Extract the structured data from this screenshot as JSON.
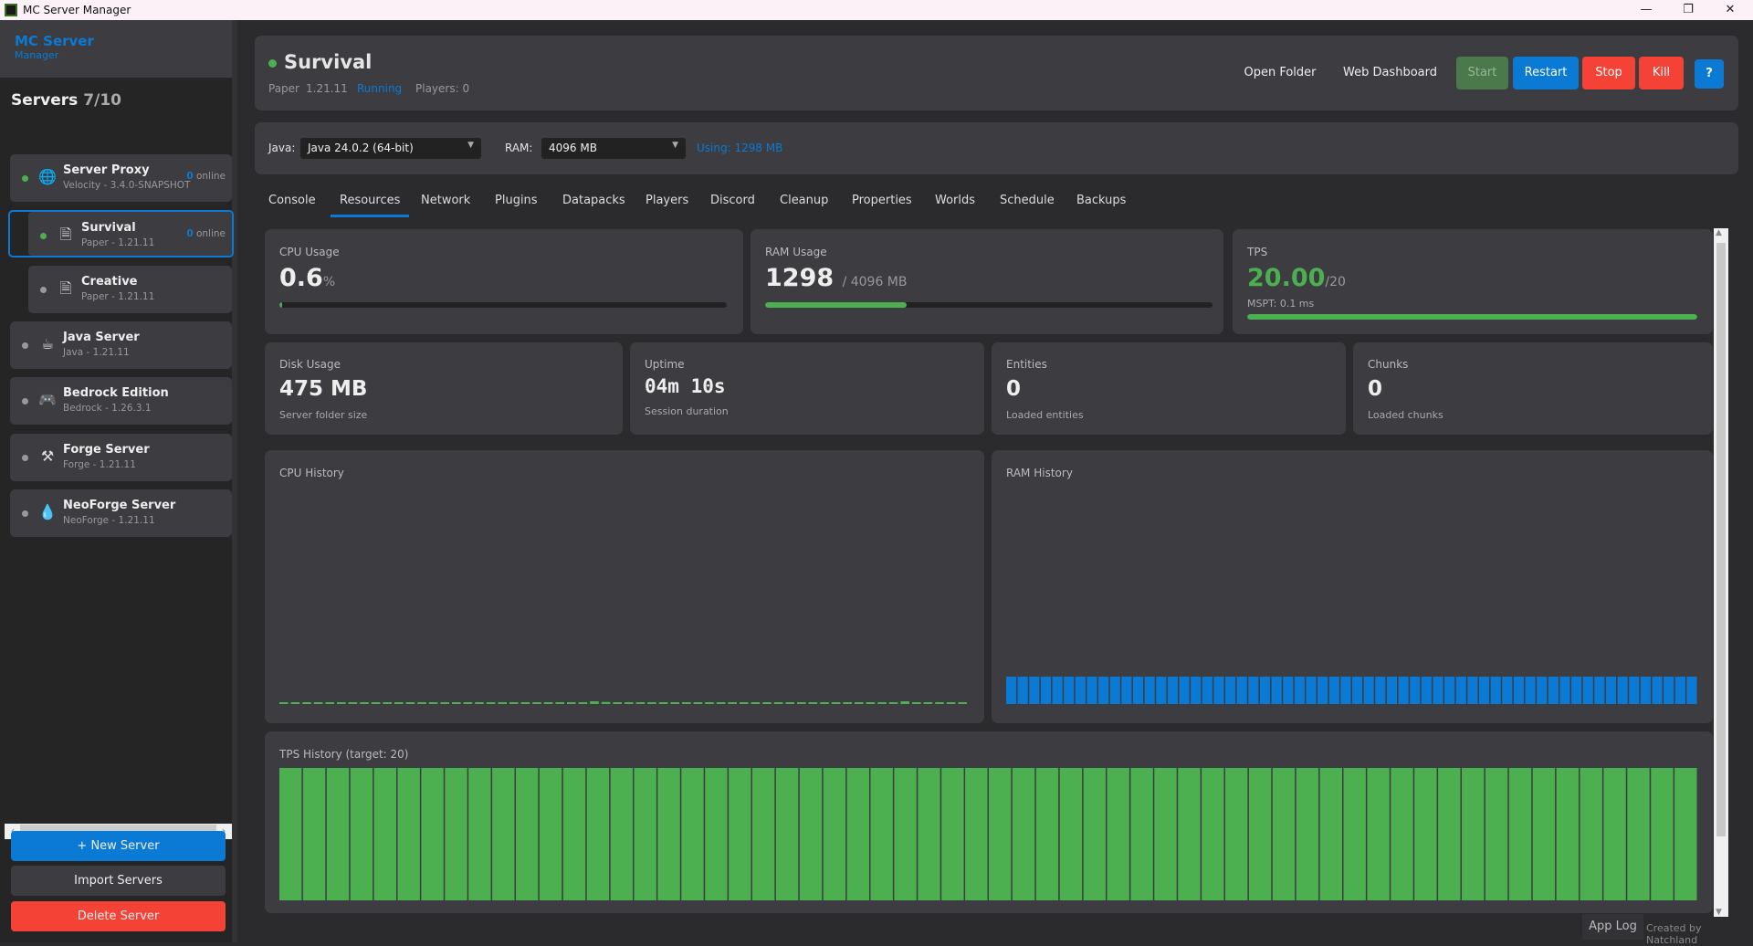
{
  "window": {
    "title": "MC Server Manager",
    "minimize": "—",
    "maximize": "❐",
    "close": "✕"
  },
  "sidebar": {
    "brand_title": "MC Server",
    "brand_subtitle": "Manager",
    "heading": "Servers",
    "count": "7/10",
    "servers": [
      {
        "name": "Server Proxy",
        "sub": "Velocity - 3.4.0-SNAPSHOT",
        "online": "0",
        "online_label": "online",
        "running": true,
        "icon": "globe-icon",
        "glyph": "🌐"
      },
      {
        "name": "Survival",
        "sub": "Paper - 1.21.11",
        "online": "0",
        "online_label": "online",
        "running": true,
        "icon": "document-icon",
        "glyph": "🗎"
      },
      {
        "name": "Creative",
        "sub": "Paper - 1.21.11",
        "running": false,
        "icon": "document-icon",
        "glyph": "🗎"
      },
      {
        "name": "Java Server",
        "sub": "Java - 1.21.11",
        "running": false,
        "icon": "coffee-cup-icon",
        "glyph": "☕"
      },
      {
        "name": "Bedrock Edition",
        "sub": "Bedrock - 1.26.3.1",
        "running": false,
        "icon": "gamepad-icon",
        "glyph": "🎮"
      },
      {
        "name": "Forge Server",
        "sub": "Forge - 1.21.11",
        "running": false,
        "icon": "hammers-icon",
        "glyph": "⚒"
      },
      {
        "name": "NeoForge Server",
        "sub": "NeoForge - 1.21.11",
        "running": false,
        "icon": "flame-icon",
        "glyph": "💧"
      }
    ],
    "new_server": "+ New Server",
    "import_servers": "Import Servers",
    "delete_server": "Delete Server"
  },
  "header": {
    "name": "Survival",
    "type": "Paper",
    "version": "1.21.11",
    "status": "Running",
    "players": "Players: 0",
    "open_folder": "Open Folder",
    "web_dashboard": "Web Dashboard",
    "start": "Start",
    "restart": "Restart",
    "stop": "Stop",
    "kill": "Kill",
    "help": "?"
  },
  "config": {
    "java_label": "Java:",
    "java_value": "Java 24.0.2 (64-bit)",
    "ram_label": "RAM:",
    "ram_value": "4096 MB",
    "using": "Using: 1298 MB"
  },
  "tabs": [
    "Console",
    "Resources",
    "Network",
    "Plugins",
    "Datapacks",
    "Players",
    "Discord",
    "Cleanup",
    "Properties",
    "Worlds",
    "Schedule",
    "Backups"
  ],
  "active_tab": "Resources",
  "stats": {
    "cpu": {
      "label": "CPU Usage",
      "value": "0.6",
      "unit": "%",
      "percent": 0.6
    },
    "ram": {
      "label": "RAM Usage",
      "value": "1298",
      "unit": "/ 4096 MB",
      "percent": 31.7
    },
    "tps": {
      "label": "TPS",
      "value": "20.00",
      "unit": "/20",
      "mspt": "MSPT:  0.1 ms",
      "percent": 100
    },
    "disk": {
      "label": "Disk Usage",
      "value": "475 MB",
      "sub": "Server folder size"
    },
    "uptime": {
      "label": "Uptime",
      "value": "04m 10s",
      "sub": "Session duration"
    },
    "entities": {
      "label": "Entities",
      "value": "0",
      "sub": "Loaded entities"
    },
    "chunks": {
      "label": "Chunks",
      "value": "0",
      "sub": "Loaded chunks"
    }
  },
  "colors": {
    "green": "#4caf50",
    "blue": "#0a7ad4",
    "red": "#f44336",
    "card": "#3c3c41"
  },
  "chart_data": [
    {
      "type": "bar",
      "title": "CPU History",
      "ylim": [
        0,
        100
      ],
      "color": "#4caf50",
      "values": [
        0.6,
        0.6,
        0.6,
        0.6,
        0.6,
        0.6,
        0.6,
        0.6,
        0.6,
        0.6,
        0.6,
        0.6,
        0.6,
        0.6,
        0.6,
        0.6,
        0.6,
        0.6,
        0.6,
        0.6,
        0.6,
        0.6,
        0.6,
        0.6,
        0.6,
        0.6,
        0.6,
        1.2,
        0.9,
        0.6,
        0.6,
        0.6,
        0.6,
        0.6,
        0.6,
        0.6,
        0.6,
        0.6,
        0.6,
        0.6,
        0.6,
        0.6,
        0.6,
        0.6,
        0.6,
        0.6,
        0.6,
        0.6,
        0.6,
        0.6,
        0.6,
        0.6,
        0.6,
        0.6,
        1.2,
        0.6,
        0.6,
        0.6,
        0.6,
        0.6
      ]
    },
    {
      "type": "bar",
      "title": "RAM History",
      "ylim": [
        0,
        4096
      ],
      "color": "#0a7ad4",
      "values": [
        1298,
        1298,
        1298,
        1298,
        1298,
        1298,
        1298,
        1298,
        1298,
        1298,
        1298,
        1298,
        1298,
        1298,
        1298,
        1298,
        1298,
        1298,
        1298,
        1298,
        1298,
        1298,
        1298,
        1298,
        1298,
        1298,
        1298,
        1298,
        1298,
        1298,
        1298,
        1298,
        1298,
        1298,
        1298,
        1298,
        1298,
        1298,
        1298,
        1298,
        1298,
        1298,
        1298,
        1298,
        1298,
        1298,
        1298,
        1298,
        1298,
        1298,
        1298,
        1298,
        1298,
        1298,
        1298,
        1298,
        1298,
        1298,
        1298,
        1298
      ]
    },
    {
      "type": "bar",
      "title": "TPS History (target: 20)",
      "ylim": [
        0,
        20
      ],
      "color": "#4caf50",
      "values": [
        20,
        20,
        20,
        20,
        20,
        20,
        20,
        20,
        20,
        20,
        20,
        20,
        20,
        20,
        20,
        20,
        20,
        20,
        20,
        20,
        20,
        20,
        20,
        20,
        20,
        20,
        20,
        20,
        20,
        20,
        20,
        20,
        20,
        20,
        20,
        20,
        20,
        20,
        20,
        20,
        20,
        20,
        20,
        20,
        20,
        20,
        20,
        20,
        20,
        20,
        20,
        20,
        20,
        20,
        20,
        20,
        20,
        20,
        20,
        20
      ]
    }
  ],
  "footer": {
    "app_log": "App Log",
    "credit": "Created by Natchland"
  }
}
